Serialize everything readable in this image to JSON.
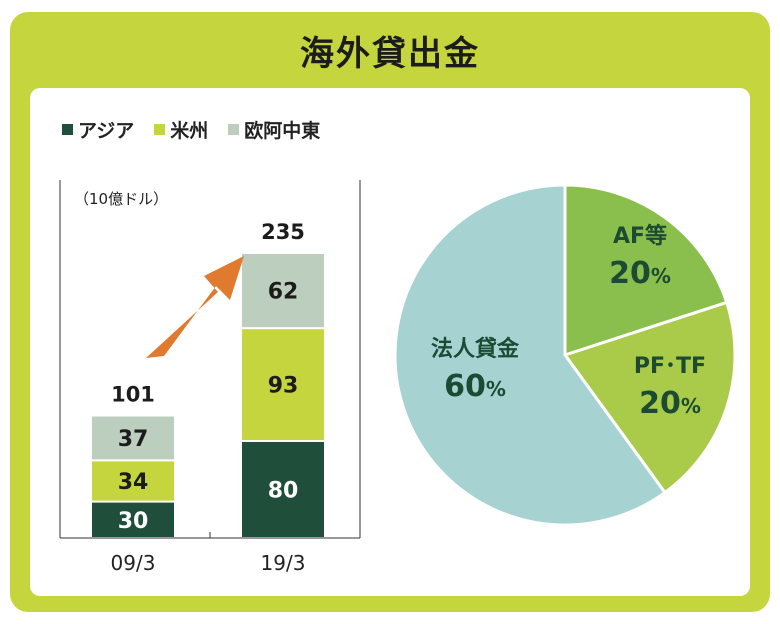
{
  "title": "海外貸出金",
  "colors": {
    "frame": "#c5d53e",
    "asia": "#1f4e3a",
    "americas": "#c5d53e",
    "emea": "#bccfbf",
    "corporate": "#a6d3d2",
    "af": "#8bbf4d",
    "pftf": "#a9cb49",
    "arrow": "#e07a2e",
    "pie_text": "#1c4a33"
  },
  "legend": [
    {
      "label": "アジア",
      "color": "#1f4e3a"
    },
    {
      "label": "米州",
      "color": "#c5d53e"
    },
    {
      "label": "欧阿中東",
      "color": "#bccfbf"
    }
  ],
  "unit_label": "（10億ドル）",
  "chart_data": [
    {
      "type": "bar",
      "stacked": true,
      "categories": [
        "09/3",
        "19/3"
      ],
      "series": [
        {
          "name": "アジア",
          "values": [
            30,
            80
          ]
        },
        {
          "name": "米州",
          "values": [
            34,
            93
          ]
        },
        {
          "name": "欧阿中東",
          "values": [
            37,
            62
          ]
        }
      ],
      "totals": [
        101,
        235
      ],
      "ylabel": "（10億ドル）",
      "ylim": [
        0,
        250
      ],
      "legend_position": "top-left",
      "annotations": [
        {
          "type": "arrow",
          "direction": "up-right",
          "from": "09/3",
          "to": "19/3"
        }
      ]
    },
    {
      "type": "pie",
      "slices": [
        {
          "label": "AF等",
          "value": 20,
          "value_label": "20%"
        },
        {
          "label": "PF･TF",
          "value": 20,
          "value_label": "20%"
        },
        {
          "label": "法人貸金",
          "value": 60,
          "value_label": "60%"
        }
      ]
    }
  ]
}
